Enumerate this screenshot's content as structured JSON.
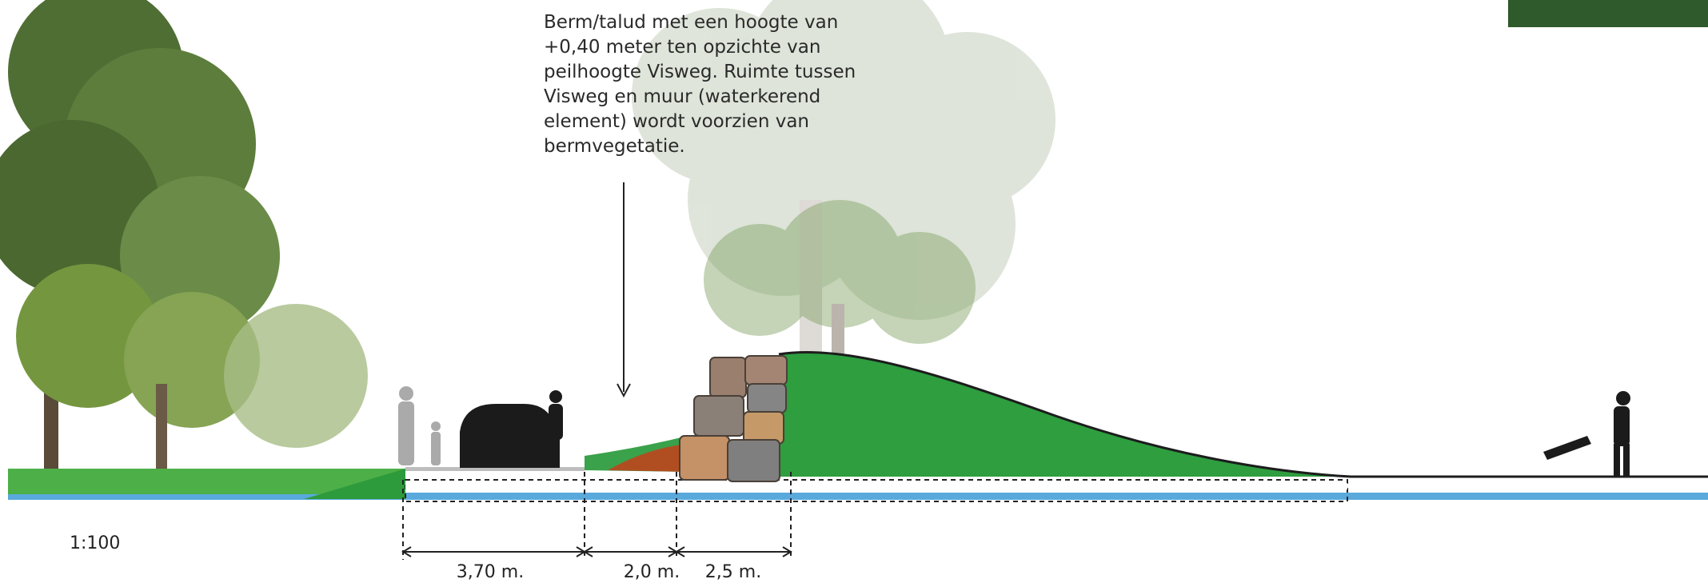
{
  "annotation": {
    "lines": [
      "Berm/talud met een hoogte van",
      "+0,40 meter ten opzichte van",
      "peilhoogte Visweg. Ruimte tussen",
      "Visweg en muur (waterkerend",
      "element) wordt voorzien van",
      "bermvegetatie."
    ]
  },
  "scale": "1:100",
  "dimensions": [
    {
      "label": "3,70 m."
    },
    {
      "label": "2,0 m."
    },
    {
      "label": "2,5 m."
    }
  ]
}
